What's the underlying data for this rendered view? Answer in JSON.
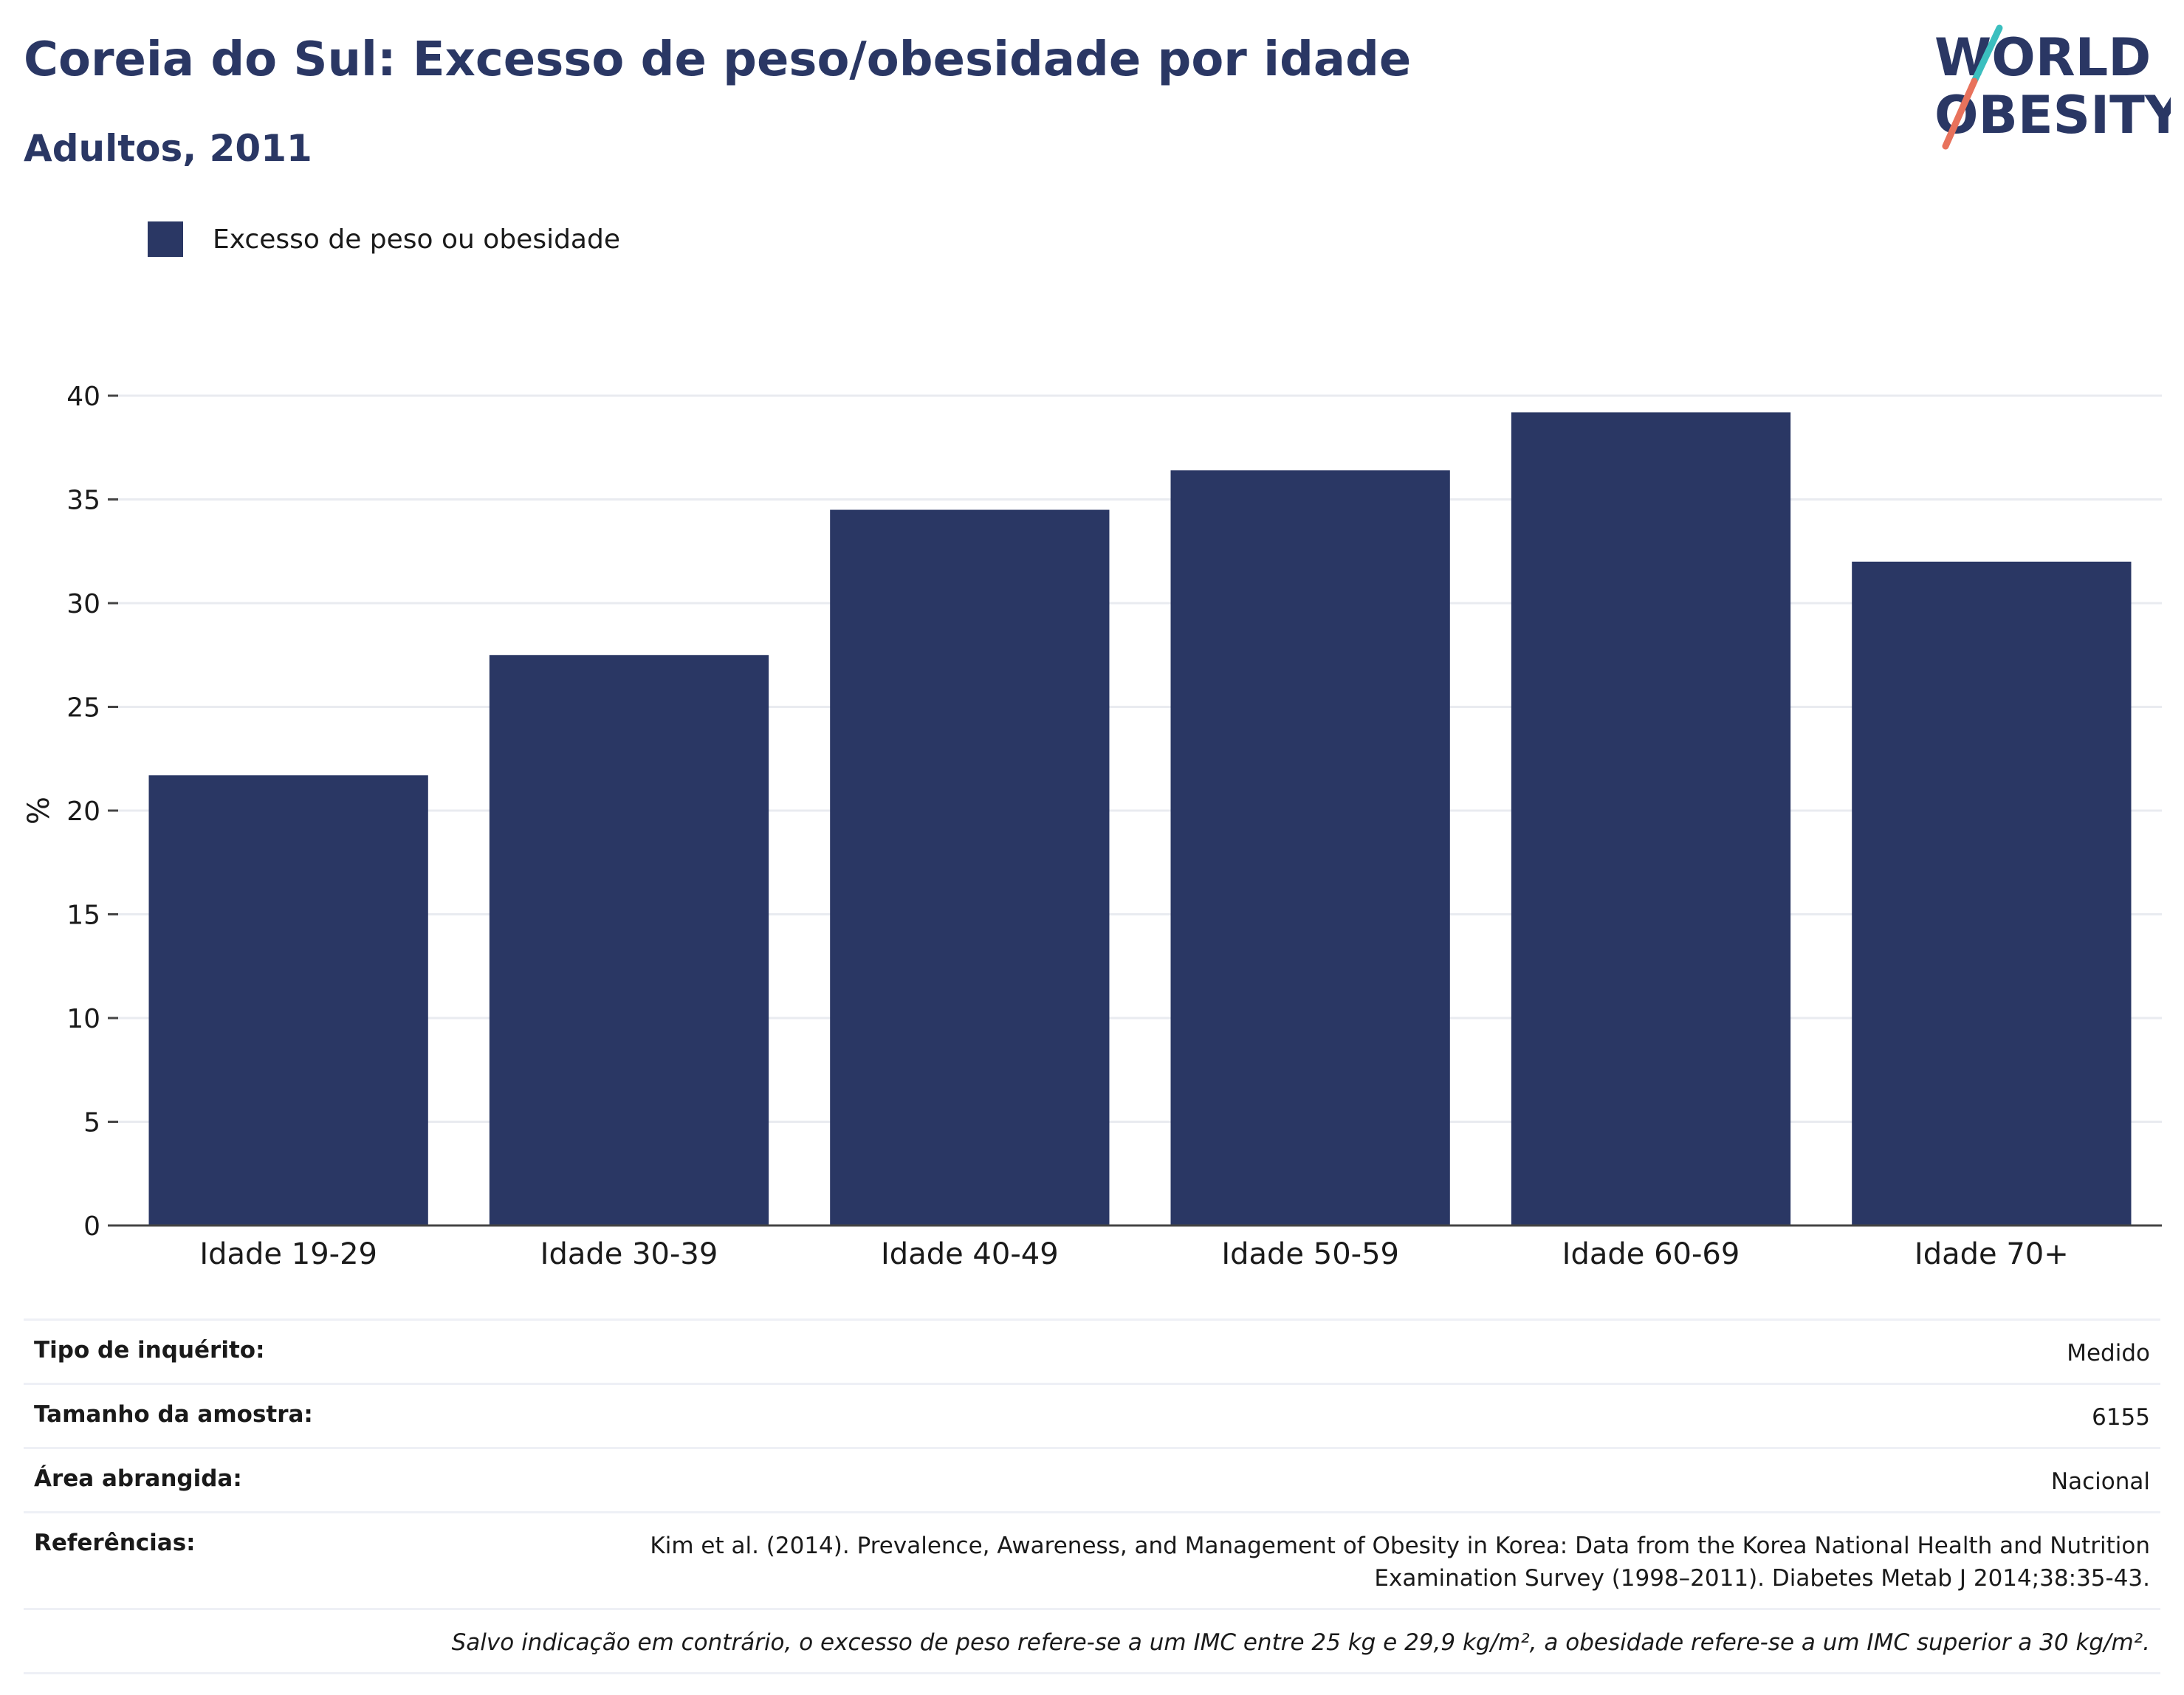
{
  "header": {
    "title": "Coreia do Sul: Excesso de peso/obesidade por idade",
    "subtitle": "Adultos, 2011"
  },
  "logo": {
    "line1": "WORLD",
    "line2": "OBESITY",
    "colors": {
      "text": "#2a3764",
      "slash_top": "#3bbfbf",
      "slash_bottom": "#e8725c"
    }
  },
  "legend": {
    "label": "Excesso de peso ou obesidade",
    "color": "#2a3764"
  },
  "chart_data": {
    "type": "bar",
    "categories": [
      "Idade 19-29",
      "Idade 30-39",
      "Idade 40-49",
      "Idade 50-59",
      "Idade 60-69",
      "Idade 70+"
    ],
    "series": [
      {
        "name": "Excesso de peso ou obesidade",
        "values": [
          21.7,
          27.5,
          34.5,
          36.4,
          39.2,
          32.0
        ],
        "color": "#2a3764"
      }
    ],
    "ylabel": "%",
    "xlabel": "",
    "ylim": [
      0,
      40
    ],
    "yticks": [
      0,
      5,
      10,
      15,
      20,
      25,
      30,
      35,
      40
    ],
    "grid": true,
    "legend_position": "top-left"
  },
  "info": {
    "survey_type": {
      "label": "Tipo de inquérito:",
      "value": "Medido"
    },
    "sample_size": {
      "label": "Tamanho da amostra:",
      "value": "6155"
    },
    "area": {
      "label": "Área abrangida:",
      "value": "Nacional"
    },
    "references": {
      "label": "Referências:",
      "value": "Kim et al. (2014). Prevalence, Awareness, and Management of Obesity in Korea: Data from the Korea National Health and Nutrition Examination Survey (1998–2011). Diabetes Metab J 2014;38:35-43."
    },
    "note": "Salvo indicação em contrário, o excesso de peso refere-se a um IMC entre 25 kg e 29,9 kg/m², a obesidade refere-se a um IMC superior a 30 kg/m²."
  }
}
